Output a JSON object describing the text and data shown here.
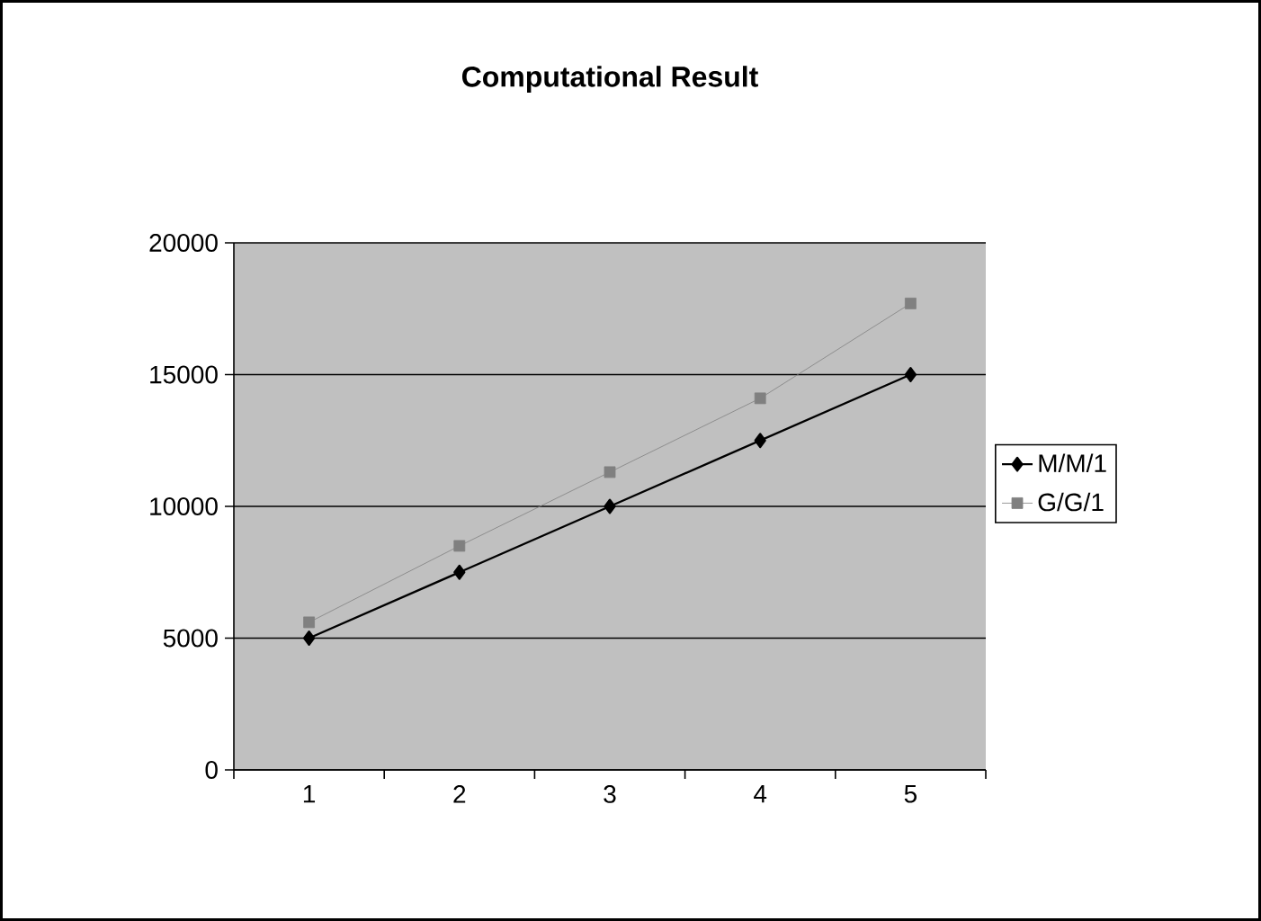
{
  "chart_data": {
    "type": "line",
    "title": "Computational Result",
    "categories": [
      "1",
      "2",
      "3",
      "4",
      "5"
    ],
    "series": [
      {
        "name": "M/M/1",
        "color": "#000000",
        "marker": "diamond",
        "values": [
          5000,
          7500,
          10000,
          12500,
          15000
        ]
      },
      {
        "name": "G/G/1",
        "color": "#808080",
        "marker": "square",
        "values": [
          5600,
          8500,
          11300,
          14100,
          17700
        ]
      }
    ],
    "ylim": [
      0,
      20000
    ],
    "yticks": [
      0,
      5000,
      10000,
      15000,
      20000
    ],
    "grid": "y",
    "legend": "right"
  }
}
